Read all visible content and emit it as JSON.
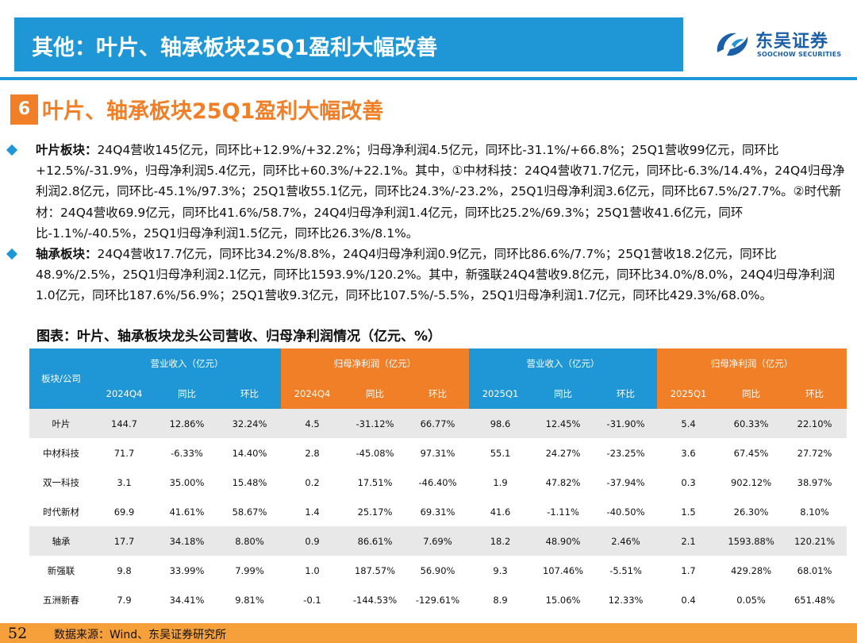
{
  "header": {
    "title": "其他：叶片、轴承板块25Q1盈利大幅改善",
    "logo_cn": "东吴证券",
    "logo_en": "SOOCHOW SECURITIES"
  },
  "section": {
    "number": "6",
    "title": "叶片、轴承板块25Q1盈利大幅改善"
  },
  "bullets": [
    {
      "label": "叶片板块：",
      "text": "24Q4营收145亿元，同环比+12.9%/+32.2%；归母净利润4.5亿元，同环比-31.1%/+66.8%；25Q1营收99亿元，同环比+12.5%/-31.9%，归母净利润5.4亿元，同环比+60.3%/+22.1%。其中，①中材科技：24Q4营收71.7亿元，同环比-6.3%/14.4%，24Q4归母净利润2.8亿元，同环比-45.1%/97.3%；25Q1营收55.1亿元，同环比24.3%/-23.2%，25Q1归母净利润3.6亿元，同环比67.5%/27.7%。②时代新材：24Q4营收69.9亿元，同环比41.6%/58.7%，24Q4归母净利润1.4亿元，同环比25.2%/69.3%；25Q1营收41.6亿元，同环比-1.1%/-40.5%，25Q1归母净利润1.5亿元，同环比26.3%/8.1%。"
    },
    {
      "label": "轴承板块：",
      "text": "24Q4营收17.7亿元，同环比34.2%/8.8%，24Q4归母净利润0.9亿元，同环比86.6%/7.7%；25Q1营收18.2亿元，同环比48.9%/2.5%，25Q1归母净利润2.1亿元，同环比1593.9%/120.2%。其中，新强联24Q4营收9.8亿元，同环比34.0%/8.0%，24Q4归母净利润1.0亿元，同环比187.6%/56.9%；25Q1营收9.3亿元，同环比107.5%/-5.5%，25Q1归母净利润1.7亿元，同环比429.3%/68.0%。"
    }
  ],
  "figure_title": "图表：叶片、轴承板块龙头公司营收、归母净利润情况（亿元、%）",
  "table": {
    "corner": "板块/公司",
    "groups": [
      "营业收入（亿元）",
      "归母净利润（亿元）",
      "营业收入（亿元）",
      "归母净利润（亿元）"
    ],
    "subheaders": [
      "2024Q4",
      "同比",
      "环比",
      "2024Q4",
      "同比",
      "环比",
      "2025Q1",
      "同比",
      "环比",
      "2025Q1",
      "同比",
      "环比"
    ],
    "rows": [
      {
        "name": "叶片",
        "sector": true,
        "cells": [
          "144.7",
          "12.86%",
          "32.24%",
          "4.5",
          "-31.12%",
          "66.77%",
          "98.6",
          "12.45%",
          "-31.90%",
          "5.4",
          "60.33%",
          "22.10%"
        ]
      },
      {
        "name": "中材科技",
        "sector": false,
        "cells": [
          "71.7",
          "-6.33%",
          "14.40%",
          "2.8",
          "-45.08%",
          "97.31%",
          "55.1",
          "24.27%",
          "-23.25%",
          "3.6",
          "67.45%",
          "27.72%"
        ]
      },
      {
        "name": "双一科技",
        "sector": false,
        "cells": [
          "3.1",
          "35.00%",
          "15.48%",
          "0.2",
          "17.51%",
          "-46.40%",
          "1.9",
          "47.82%",
          "-37.94%",
          "0.3",
          "902.12%",
          "38.97%"
        ]
      },
      {
        "name": "时代新材",
        "sector": false,
        "cells": [
          "69.9",
          "41.61%",
          "58.67%",
          "1.4",
          "25.17%",
          "69.31%",
          "41.6",
          "-1.11%",
          "-40.50%",
          "1.5",
          "26.30%",
          "8.10%"
        ]
      },
      {
        "name": "轴承",
        "sector": true,
        "cells": [
          "17.7",
          "34.18%",
          "8.80%",
          "0.9",
          "86.61%",
          "7.69%",
          "18.2",
          "48.90%",
          "2.46%",
          "2.1",
          "1593.88%",
          "120.21%"
        ]
      },
      {
        "name": "新强联",
        "sector": false,
        "cells": [
          "9.8",
          "33.99%",
          "7.99%",
          "1.0",
          "187.57%",
          "56.90%",
          "9.3",
          "107.46%",
          "-5.51%",
          "1.7",
          "429.28%",
          "68.01%"
        ]
      },
      {
        "name": "五洲新春",
        "sector": false,
        "cells": [
          "7.9",
          "34.41%",
          "9.81%",
          "-0.1",
          "-144.53%",
          "-129.61%",
          "8.9",
          "15.06%",
          "12.33%",
          "0.4",
          "0.05%",
          "651.48%"
        ]
      }
    ]
  },
  "footer": {
    "page_number": "52",
    "source": "数据来源：Wind、东吴证券研究所"
  },
  "colors": {
    "brand_blue": "#1f97d6",
    "accent_orange": "#f07f27",
    "footer_orange": "#f6a03c",
    "sector_row_gray": "#e8e8e8"
  }
}
